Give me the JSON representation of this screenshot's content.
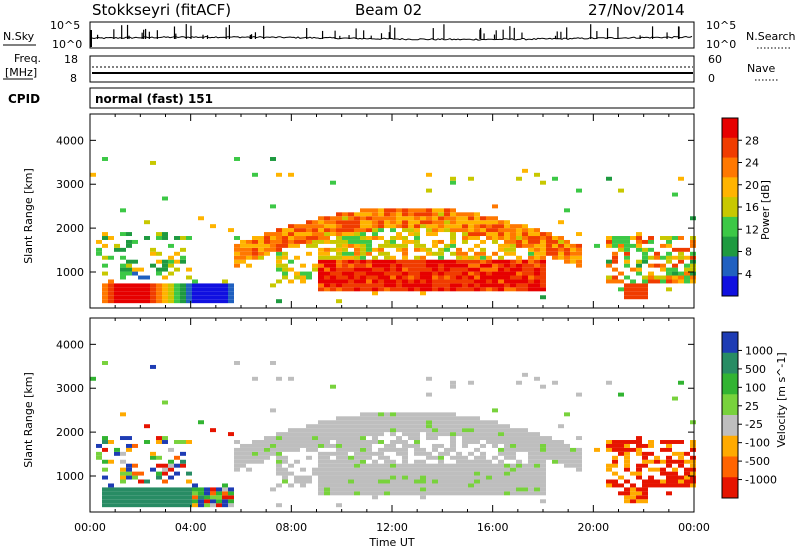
{
  "header": {
    "station": "Stokkseyri (fitACF)",
    "beam": "Beam 02",
    "date": "27/Nov/2014"
  },
  "noise_panel": {
    "left_label": "N.Sky",
    "right_label": "N.Search",
    "left_ticks": [
      "10^5",
      "10^0"
    ],
    "right_ticks": [
      "10^5",
      "10^0"
    ]
  },
  "freq_panel": {
    "left_label_1": "Freq.",
    "left_label_2": "[MHz]",
    "left_ticks": [
      "18",
      "8"
    ],
    "right_label": "Nave",
    "right_ticks": [
      "60",
      "0"
    ]
  },
  "cpid": {
    "label": "CPID",
    "value": "normal (fast) 151"
  },
  "chart_data": [
    {
      "type": "heatmap",
      "title": "",
      "ylabel": "Slant Range [km]",
      "xlabel": "",
      "x_range": [
        "00:00",
        "24:00"
      ],
      "ylim": [
        180,
        4600
      ],
      "y_ticks": [
        1000,
        2000,
        3000,
        4000
      ],
      "colorbar": {
        "label": "Power [dB]",
        "ticks": [
          4,
          8,
          12,
          16,
          20,
          24,
          28
        ],
        "colors": [
          "#1010e0",
          "#2060c0",
          "#1e9a40",
          "#3cc846",
          "#c8c800",
          "#ffb400",
          "#ff7800",
          "#f03c00",
          "#e60000"
        ]
      }
    },
    {
      "type": "heatmap",
      "title": "",
      "ylabel": "Slant Range [km]",
      "xlabel": "Time UT",
      "x_range": [
        "00:00",
        "24:00"
      ],
      "x_ticks": [
        "00:00",
        "04:00",
        "08:00",
        "12:00",
        "16:00",
        "20:00",
        "00:00"
      ],
      "ylim": [
        180,
        4600
      ],
      "y_ticks": [
        1000,
        2000,
        3000,
        4000
      ],
      "colorbar": {
        "label": "Velocity [m s^-1]",
        "ticks": [
          1000,
          500,
          100,
          25,
          -25,
          -100,
          -500,
          -1000
        ],
        "colors": [
          "#1e3cb4",
          "#288c64",
          "#32b432",
          "#78d23c",
          "#bebebe",
          "#ffaa00",
          "#ff6400",
          "#e61400"
        ]
      }
    }
  ]
}
